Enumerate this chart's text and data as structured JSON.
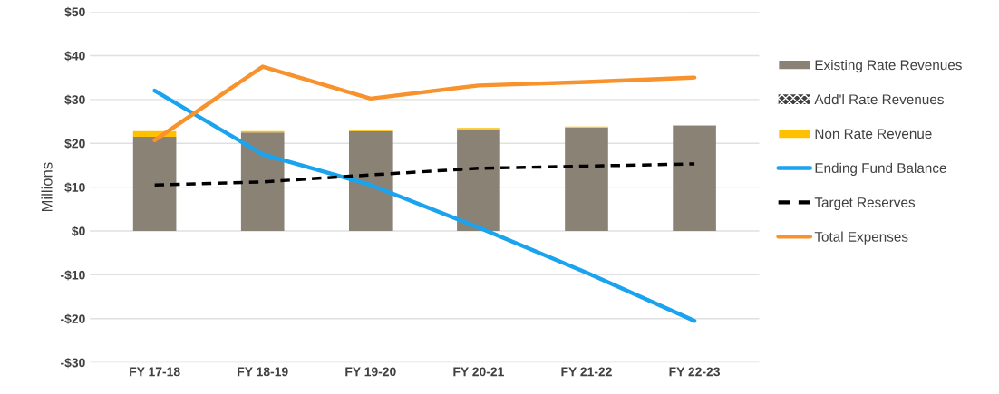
{
  "chart_data": {
    "type": "bar",
    "ylabel": "Millions",
    "stacked": true,
    "categories": [
      "FY 17-18",
      "FY 18-19",
      "FY 19-20",
      "FY 20-21",
      "FY 21-22",
      "FY 22-23"
    ],
    "series": [
      {
        "name": "Existing Rate Revenues",
        "color": "#8b8276",
        "values": [
          21.5,
          22.5,
          22.8,
          23.2,
          23.6,
          24.0
        ]
      },
      {
        "name": "Add'l Rate Revenues",
        "color": "#404040",
        "values": [
          0,
          0,
          0,
          0,
          0,
          0
        ]
      },
      {
        "name": "Non Rate Revenue",
        "color": "#ffc000",
        "values": [
          1.3,
          0.3,
          0.3,
          0.3,
          0.2,
          0.2
        ]
      },
      {
        "name": "Ending Fund Balance",
        "type": "line",
        "color": "#1aa3ee",
        "line_style": "solid",
        "values": [
          32,
          17.5,
          10.5,
          0.8,
          -9.5,
          -20.5
        ]
      },
      {
        "name": "Target Reserves",
        "type": "line",
        "color": "#000000",
        "line_style": "dashed",
        "values": [
          10.5,
          11.2,
          12.8,
          14.3,
          14.8,
          15.3
        ]
      },
      {
        "name": "Total Expenses",
        "type": "line",
        "color": "#f7922d",
        "line_style": "solid",
        "values": [
          20.7,
          37.5,
          30.2,
          33.2,
          34.0,
          35.0
        ]
      }
    ],
    "ylim": [
      -30,
      50
    ],
    "yticks": [
      {
        "value": -30,
        "label": "-$30"
      },
      {
        "value": -20,
        "label": "-$20"
      },
      {
        "value": -10,
        "label": "-$10"
      },
      {
        "value": 0,
        "label": "$0"
      },
      {
        "value": 10,
        "label": "$10"
      },
      {
        "value": 20,
        "label": "$20"
      },
      {
        "value": 30,
        "label": "$30"
      },
      {
        "value": 40,
        "label": "$40"
      },
      {
        "value": 50,
        "label": "$50"
      }
    ],
    "grid": "y",
    "legend": "right"
  }
}
